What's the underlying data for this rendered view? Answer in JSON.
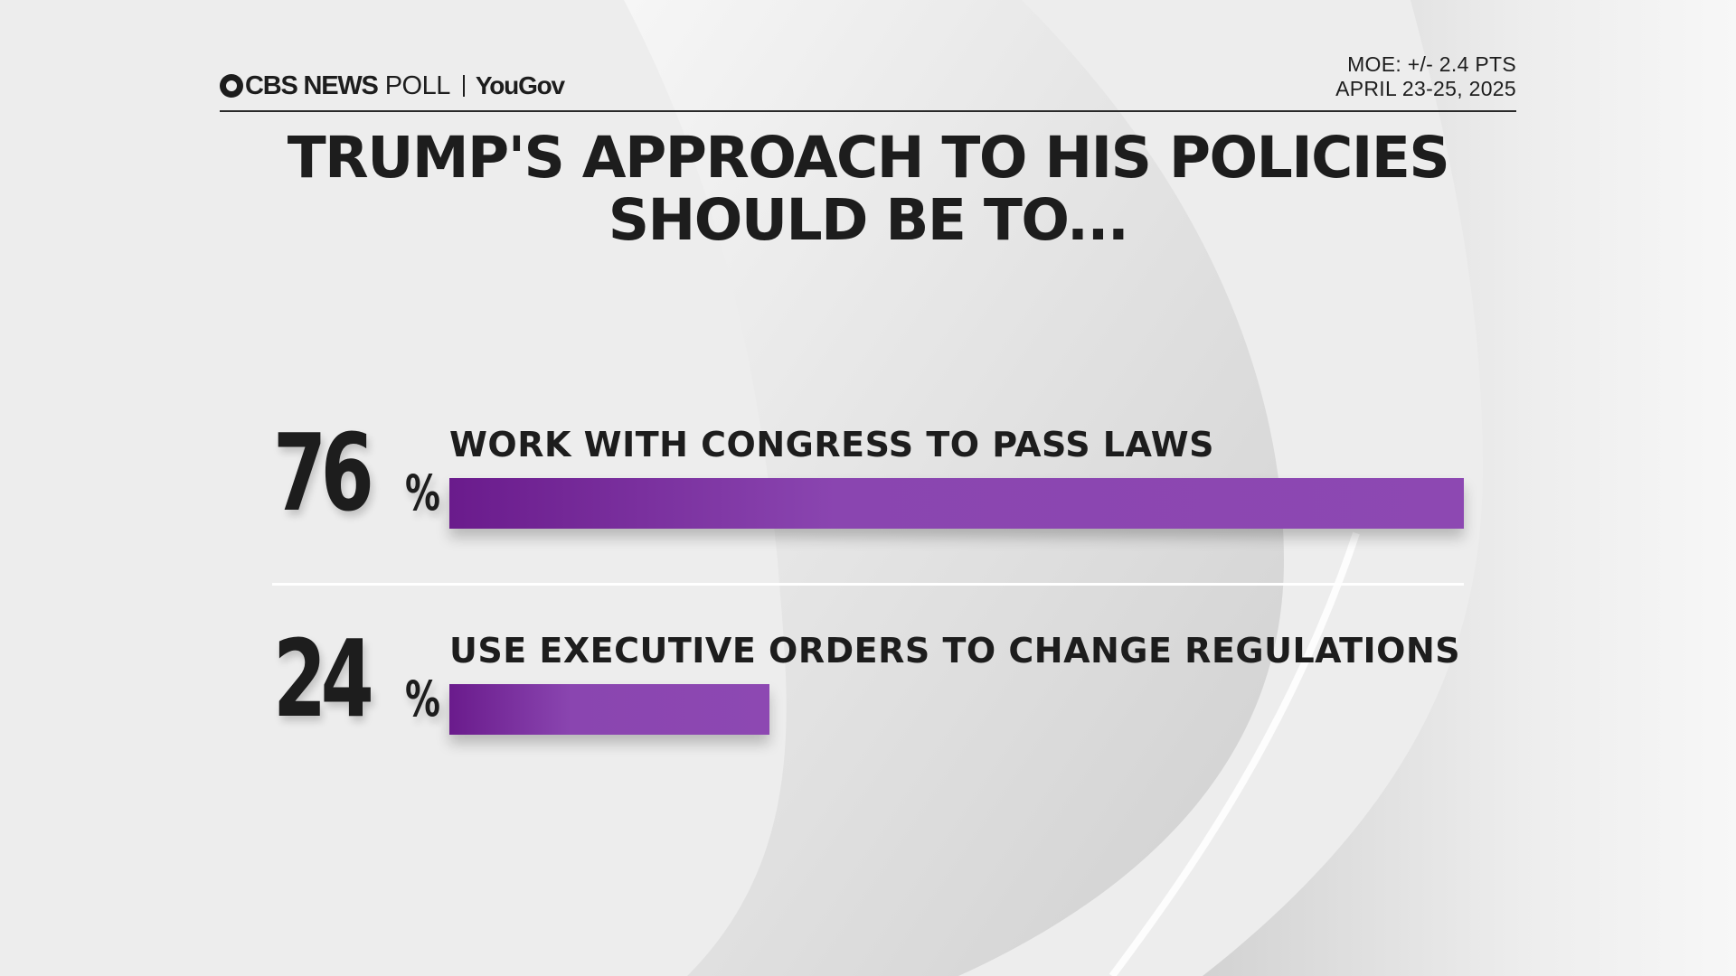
{
  "header": {
    "brand_cbs": "CBS NEWS",
    "brand_poll": "POLL",
    "brand_partner": "YouGov",
    "moe": "MOE: +/- 2.4 PTS",
    "dates": "APRIL 23-25, 2025"
  },
  "colors": {
    "bar_start": "#6a1b8c",
    "bar_end": "#8d48b2",
    "text": "#1d1d1d"
  },
  "chart_data": {
    "type": "bar",
    "orientation": "horizontal",
    "title": "TRUMP'S APPROACH TO HIS POLICIES SHOULD BE TO...",
    "title_lines": [
      "TRUMP'S APPROACH TO HIS POLICIES",
      "SHOULD BE TO..."
    ],
    "categories": [
      "WORK WITH CONGRESS TO PASS LAWS",
      "USE EXECUTIVE ORDERS TO CHANGE REGULATIONS"
    ],
    "values": [
      76,
      24
    ],
    "value_labels": [
      "76",
      "24"
    ],
    "unit": "%",
    "xlim": [
      0,
      76
    ],
    "grid": false
  }
}
